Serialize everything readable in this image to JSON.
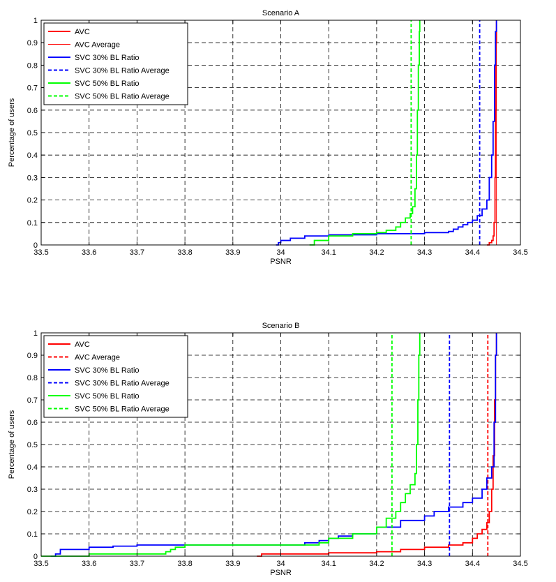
{
  "chart_data": [
    {
      "type": "line",
      "title": "Scenario A",
      "xlabel": "PSNR",
      "ylabel": "Percentage of users",
      "xlim": [
        33.5,
        34.5
      ],
      "ylim": [
        0,
        1
      ],
      "xticks": [
        33.5,
        33.6,
        33.7,
        33.8,
        33.9,
        34,
        34.1,
        34.2,
        34.3,
        34.4,
        34.5
      ],
      "xtick_labels": [
        "33.5",
        "33.6",
        "33.7",
        "33.8",
        "33.9",
        "34",
        "34.1",
        "34.2",
        "34.3",
        "34.4",
        "34.5"
      ],
      "yticks": [
        0,
        0.1,
        0.2,
        0.3,
        0.4,
        0.5,
        0.6,
        0.7,
        0.8,
        0.9,
        1
      ],
      "ytick_labels": [
        "0",
        "0.1",
        "0.2",
        "0.3",
        "0.4",
        "0.5",
        "0.6",
        "0.7",
        "0.8",
        "0.9",
        "1"
      ],
      "grid": true,
      "legend_position": "top-left",
      "legend": [
        {
          "label": "AVC",
          "color": "#ff0000",
          "dash": "solid",
          "width": "thick"
        },
        {
          "label": "AVC Average",
          "color": "#ff0000",
          "dash": "solid",
          "width": "thin"
        },
        {
          "label": "SVC 30% BL Ratio",
          "color": "#0000ff",
          "dash": "solid",
          "width": "thick"
        },
        {
          "label": "SVC 30% BL Ratio Average",
          "color": "#0000ff",
          "dash": "dashed",
          "width": "thick"
        },
        {
          "label": "SVC 50% BL Ratio",
          "color": "#00ff00",
          "dash": "solid",
          "width": "thick"
        },
        {
          "label": "SVC 50% BL Ratio Average",
          "color": "#00ff00",
          "dash": "dashed",
          "width": "thick"
        }
      ],
      "series": [
        {
          "name": "AVC",
          "color": "#ff0000",
          "dash": "solid",
          "x": [
            34.43,
            34.435,
            34.44,
            34.443,
            34.445,
            34.447,
            34.448,
            34.449,
            34.45
          ],
          "y": [
            0,
            0.01,
            0.02,
            0.04,
            0.1,
            0.3,
            0.6,
            0.9,
            1
          ]
        },
        {
          "name": "AVC Average",
          "color": "#ff0000",
          "dash": "solid",
          "vline": 34.45
        },
        {
          "name": "SVC 30% BL Ratio",
          "color": "#0000ff",
          "dash": "solid",
          "x": [
            33.99,
            33.995,
            34.0,
            34.02,
            34.05,
            34.1,
            34.2,
            34.3,
            34.35,
            34.36,
            34.37,
            34.38,
            34.39,
            34.4,
            34.41,
            34.42,
            34.43,
            34.435,
            34.44,
            34.443,
            34.446,
            34.448,
            34.45
          ],
          "y": [
            0,
            0.01,
            0.02,
            0.03,
            0.04,
            0.045,
            0.05,
            0.055,
            0.06,
            0.07,
            0.08,
            0.09,
            0.1,
            0.11,
            0.13,
            0.16,
            0.2,
            0.3,
            0.4,
            0.55,
            0.8,
            0.95,
            1
          ]
        },
        {
          "name": "SVC 30% BL Ratio Average",
          "color": "#0000ff",
          "dash": "dashed",
          "vline": 34.415
        },
        {
          "name": "SVC 50% BL Ratio",
          "color": "#00ff00",
          "dash": "solid",
          "x": [
            34.06,
            34.07,
            34.1,
            34.15,
            34.2,
            34.22,
            34.24,
            34.25,
            34.26,
            34.27,
            34.275,
            34.28,
            34.283,
            34.285,
            34.287,
            34.289,
            34.29
          ],
          "y": [
            0,
            0.02,
            0.04,
            0.05,
            0.055,
            0.065,
            0.08,
            0.1,
            0.12,
            0.14,
            0.17,
            0.25,
            0.4,
            0.6,
            0.8,
            0.95,
            1
          ]
        },
        {
          "name": "SVC 50% BL Ratio Average",
          "color": "#00ff00",
          "dash": "dashed",
          "vline": 34.272
        }
      ]
    },
    {
      "type": "line",
      "title": "Scenario B",
      "xlabel": "PSNR",
      "ylabel": "Percentage of users",
      "xlim": [
        33.5,
        34.5
      ],
      "ylim": [
        0,
        1
      ],
      "xticks": [
        33.5,
        33.6,
        33.7,
        33.8,
        33.9,
        34,
        34.1,
        34.2,
        34.3,
        34.4,
        34.5
      ],
      "xtick_labels": [
        "33.5",
        "33.6",
        "33.7",
        "33.8",
        "33.9",
        "34",
        "34.1",
        "34.2",
        "34.3",
        "34.4",
        "34.5"
      ],
      "yticks": [
        0,
        0.1,
        0.2,
        0.3,
        0.4,
        0.5,
        0.6,
        0.7,
        0.8,
        0.9,
        1
      ],
      "ytick_labels": [
        "0",
        "0.1",
        "0.2",
        "0.3",
        "0.4",
        "0.5",
        "0.6",
        "0.7",
        "0.8",
        "0.9",
        "1"
      ],
      "grid": true,
      "legend_position": "top-left",
      "legend": [
        {
          "label": "AVC",
          "color": "#ff0000",
          "dash": "solid",
          "width": "thick"
        },
        {
          "label": "AVC Average",
          "color": "#ff0000",
          "dash": "dashed",
          "width": "thick"
        },
        {
          "label": "SVC 30% BL Ratio",
          "color": "#0000ff",
          "dash": "solid",
          "width": "thick"
        },
        {
          "label": "SVC 30% BL Ratio Average",
          "color": "#0000ff",
          "dash": "dashed",
          "width": "thick"
        },
        {
          "label": "SVC 50% BL Ratio",
          "color": "#00ff00",
          "dash": "solid",
          "width": "thick"
        },
        {
          "label": "SVC 50% BL Ratio Average",
          "color": "#00ff00",
          "dash": "dashed",
          "width": "thick"
        }
      ],
      "series": [
        {
          "name": "AVC",
          "color": "#ff0000",
          "dash": "solid",
          "x": [
            33.95,
            33.96,
            34.1,
            34.2,
            34.25,
            34.3,
            34.35,
            34.38,
            34.4,
            34.41,
            34.42,
            34.43,
            34.435,
            34.44,
            34.443,
            34.446,
            34.448,
            34.45
          ],
          "y": [
            0,
            0.01,
            0.015,
            0.02,
            0.03,
            0.04,
            0.05,
            0.06,
            0.08,
            0.1,
            0.12,
            0.15,
            0.2,
            0.3,
            0.45,
            0.7,
            0.9,
            1
          ]
        },
        {
          "name": "AVC Average",
          "color": "#ff0000",
          "dash": "dashed",
          "vline": 34.432
        },
        {
          "name": "SVC 30% BL Ratio",
          "color": "#0000ff",
          "dash": "solid",
          "x": [
            33.52,
            33.53,
            33.54,
            33.6,
            33.65,
            33.7,
            33.75,
            33.84,
            33.9,
            34.0,
            34.05,
            34.08,
            34.1,
            34.12,
            34.15,
            34.2,
            34.25,
            34.3,
            34.32,
            34.35,
            34.38,
            34.4,
            34.42,
            34.43,
            34.44,
            34.445,
            34.448,
            34.45
          ],
          "y": [
            0,
            0.01,
            0.03,
            0.04,
            0.045,
            0.05,
            0.05,
            0.05,
            0.05,
            0.05,
            0.06,
            0.07,
            0.08,
            0.09,
            0.1,
            0.13,
            0.16,
            0.18,
            0.2,
            0.22,
            0.24,
            0.26,
            0.3,
            0.35,
            0.4,
            0.6,
            0.9,
            1
          ]
        },
        {
          "name": "SVC 30% BL Ratio Average",
          "color": "#0000ff",
          "dash": "dashed",
          "vline": 34.352
        },
        {
          "name": "SVC 50% BL Ratio",
          "color": "#00ff00",
          "dash": "solid",
          "x": [
            33.5,
            33.6,
            33.7,
            33.76,
            33.77,
            33.78,
            33.8,
            33.9,
            34.0,
            34.05,
            34.08,
            34.1,
            34.15,
            34.2,
            34.22,
            34.24,
            34.25,
            34.26,
            34.27,
            34.28,
            34.283,
            34.286,
            34.288,
            34.29
          ],
          "y": [
            0,
            0.01,
            0.01,
            0.02,
            0.03,
            0.04,
            0.05,
            0.05,
            0.05,
            0.05,
            0.06,
            0.08,
            0.1,
            0.13,
            0.17,
            0.2,
            0.24,
            0.28,
            0.32,
            0.37,
            0.5,
            0.7,
            0.9,
            1
          ]
        },
        {
          "name": "SVC 50% BL Ratio Average",
          "color": "#00ff00",
          "dash": "dashed",
          "vline": 34.232
        }
      ]
    }
  ]
}
